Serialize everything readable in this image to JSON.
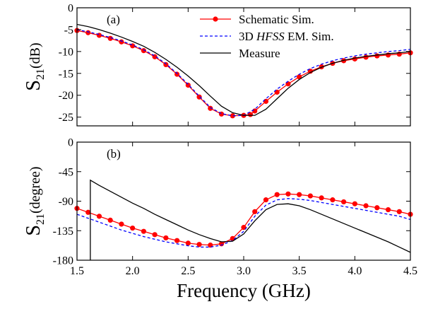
{
  "chart_data": [
    {
      "type": "line",
      "panel_label": "(a)",
      "ylabel_main": "S",
      "ylabel_sub": "21",
      "ylabel_rest": "(dB)",
      "ylim": [
        -27,
        0
      ],
      "yticks": [
        0,
        -5,
        -10,
        -15,
        -20,
        -25
      ],
      "ytick_labels": [
        "0",
        "-5",
        "-10",
        "-15",
        "-20",
        "-25"
      ],
      "xlim": [
        1.5,
        4.5
      ],
      "legend_position": "top-right",
      "legend": [
        {
          "series": 0,
          "prefix": "Schematic Sim.",
          "italic": "",
          "suffix": ""
        },
        {
          "series": 1,
          "prefix": "3D ",
          "italic": "HFSS",
          "suffix": " EM. Sim."
        },
        {
          "series": 2,
          "prefix": "Measure",
          "italic": "",
          "suffix": ""
        }
      ],
      "series": [
        {
          "name": "Schematic Sim.",
          "color": "#ff0000",
          "marker": "circle",
          "x": [
            1.5,
            1.6,
            1.7,
            1.8,
            1.9,
            2.0,
            2.1,
            2.2,
            2.3,
            2.4,
            2.5,
            2.6,
            2.7,
            2.8,
            2.9,
            3.0,
            3.06,
            3.1,
            3.2,
            3.3,
            3.4,
            3.5,
            3.6,
            3.7,
            3.8,
            3.9,
            4.0,
            4.1,
            4.2,
            4.3,
            4.4,
            4.5
          ],
          "y": [
            -5.2,
            -5.7,
            -6.3,
            -7.0,
            -7.8,
            -8.7,
            -9.8,
            -11.2,
            -13.0,
            -15.2,
            -17.7,
            -20.4,
            -23.0,
            -24.3,
            -24.7,
            -24.6,
            -24.4,
            -23.6,
            -21.4,
            -19.3,
            -17.4,
            -15.8,
            -14.5,
            -13.5,
            -12.7,
            -12.1,
            -11.7,
            -11.3,
            -11.0,
            -10.8,
            -10.6,
            -10.3
          ]
        },
        {
          "name": "3D HFSS EM. Sim.",
          "color": "#0000ff",
          "dash": "dash",
          "x": [
            1.5,
            1.6,
            1.7,
            1.8,
            1.9,
            2.0,
            2.1,
            2.2,
            2.3,
            2.4,
            2.5,
            2.6,
            2.7,
            2.8,
            2.9,
            3.0,
            3.1,
            3.2,
            3.3,
            3.4,
            3.5,
            3.6,
            3.7,
            3.8,
            3.9,
            4.0,
            4.1,
            4.2,
            4.3,
            4.4,
            4.5
          ],
          "y": [
            -5.0,
            -5.5,
            -6.1,
            -6.8,
            -7.6,
            -8.5,
            -9.6,
            -11.0,
            -12.8,
            -15.0,
            -17.5,
            -20.2,
            -22.8,
            -24.2,
            -24.7,
            -24.6,
            -23.2,
            -20.8,
            -18.6,
            -16.8,
            -15.2,
            -13.9,
            -12.9,
            -12.1,
            -11.5,
            -11.0,
            -10.6,
            -10.3,
            -10.0,
            -9.8,
            -9.5
          ]
        },
        {
          "name": "Measure",
          "color": "#000000",
          "x": [
            1.5,
            1.6,
            1.7,
            1.8,
            1.9,
            2.0,
            2.1,
            2.2,
            2.3,
            2.4,
            2.5,
            2.6,
            2.7,
            2.8,
            2.9,
            3.0,
            3.1,
            3.2,
            3.3,
            3.4,
            3.5,
            3.6,
            3.7,
            3.8,
            3.9,
            4.0,
            4.1,
            4.2,
            4.3,
            4.4,
            4.5
          ],
          "y": [
            -3.8,
            -4.3,
            -5.0,
            -5.8,
            -6.7,
            -7.7,
            -8.8,
            -10.2,
            -11.8,
            -13.6,
            -15.6,
            -17.8,
            -20.2,
            -22.5,
            -24.0,
            -24.6,
            -24.6,
            -23.2,
            -20.8,
            -18.4,
            -16.4,
            -14.8,
            -13.6,
            -12.7,
            -12.0,
            -11.5,
            -11.1,
            -10.8,
            -10.5,
            -10.3,
            -10.0
          ]
        }
      ]
    },
    {
      "type": "line",
      "panel_label": "(b)",
      "ylabel_main": "S",
      "ylabel_sub": "21",
      "ylabel_rest": "(degree)",
      "ylim": [
        -180,
        0
      ],
      "yticks": [
        0,
        -45,
        -90,
        -135,
        -180
      ],
      "ytick_labels": [
        "0",
        "-45",
        "-90",
        "-135",
        "-180"
      ],
      "xlim": [
        1.5,
        4.5
      ],
      "xticks": [
        1.5,
        2.0,
        2.5,
        3.0,
        3.5,
        4.0,
        4.5
      ],
      "xtick_labels": [
        "1.5",
        "2.0",
        "2.5",
        "3.0",
        "3.5",
        "4.0",
        "4.5"
      ],
      "xlabel": "Frequency (GHz)",
      "series": [
        {
          "name": "Schematic Sim.",
          "color": "#ff0000",
          "marker": "circle",
          "x": [
            1.5,
            1.6,
            1.7,
            1.8,
            1.9,
            2.0,
            2.1,
            2.2,
            2.3,
            2.4,
            2.5,
            2.6,
            2.7,
            2.8,
            2.9,
            3.0,
            3.1,
            3.2,
            3.3,
            3.4,
            3.5,
            3.6,
            3.7,
            3.8,
            3.9,
            4.0,
            4.1,
            4.2,
            4.3,
            4.4,
            4.5
          ],
          "y": [
            -101,
            -107,
            -113,
            -119,
            -125,
            -131,
            -136,
            -141,
            -146,
            -150,
            -154,
            -156,
            -157,
            -155,
            -147,
            -130,
            -106,
            -88,
            -80,
            -79,
            -80,
            -82,
            -85,
            -88,
            -91,
            -94,
            -97,
            -100,
            -103,
            -106,
            -110
          ]
        },
        {
          "name": "3D HFSS EM. Sim.",
          "color": "#0000ff",
          "dash": "dash",
          "x": [
            1.5,
            1.6,
            1.7,
            1.8,
            1.9,
            2.0,
            2.1,
            2.2,
            2.3,
            2.4,
            2.5,
            2.6,
            2.7,
            2.8,
            2.9,
            3.0,
            3.1,
            3.2,
            3.3,
            3.4,
            3.5,
            3.6,
            3.7,
            3.8,
            3.9,
            4.0,
            4.1,
            4.2,
            4.3,
            4.4,
            4.5
          ],
          "y": [
            -110,
            -116,
            -122,
            -128,
            -134,
            -139,
            -144,
            -148,
            -152,
            -155,
            -158,
            -160,
            -160,
            -157,
            -150,
            -136,
            -113,
            -96,
            -88,
            -86,
            -87,
            -89,
            -92,
            -95,
            -98,
            -101,
            -104,
            -107,
            -110,
            -113,
            -118
          ]
        },
        {
          "name": "Measure",
          "color": "#000000",
          "x": [
            1.62,
            1.62,
            1.7,
            1.8,
            1.9,
            2.0,
            2.1,
            2.2,
            2.3,
            2.4,
            2.5,
            2.6,
            2.7,
            2.8,
            2.9,
            3.0,
            3.1,
            3.2,
            3.3,
            3.4,
            3.5,
            3.6,
            3.7,
            3.8,
            3.9,
            4.0,
            4.1,
            4.2,
            4.3,
            4.4,
            4.5
          ],
          "y": [
            -180,
            -58,
            -66,
            -75,
            -84,
            -93,
            -101,
            -110,
            -118,
            -126,
            -134,
            -141,
            -147,
            -152,
            -151,
            -140,
            -120,
            -103,
            -95,
            -94,
            -97,
            -103,
            -110,
            -117,
            -124,
            -131,
            -138,
            -145,
            -152,
            -160,
            -168
          ]
        }
      ]
    }
  ]
}
